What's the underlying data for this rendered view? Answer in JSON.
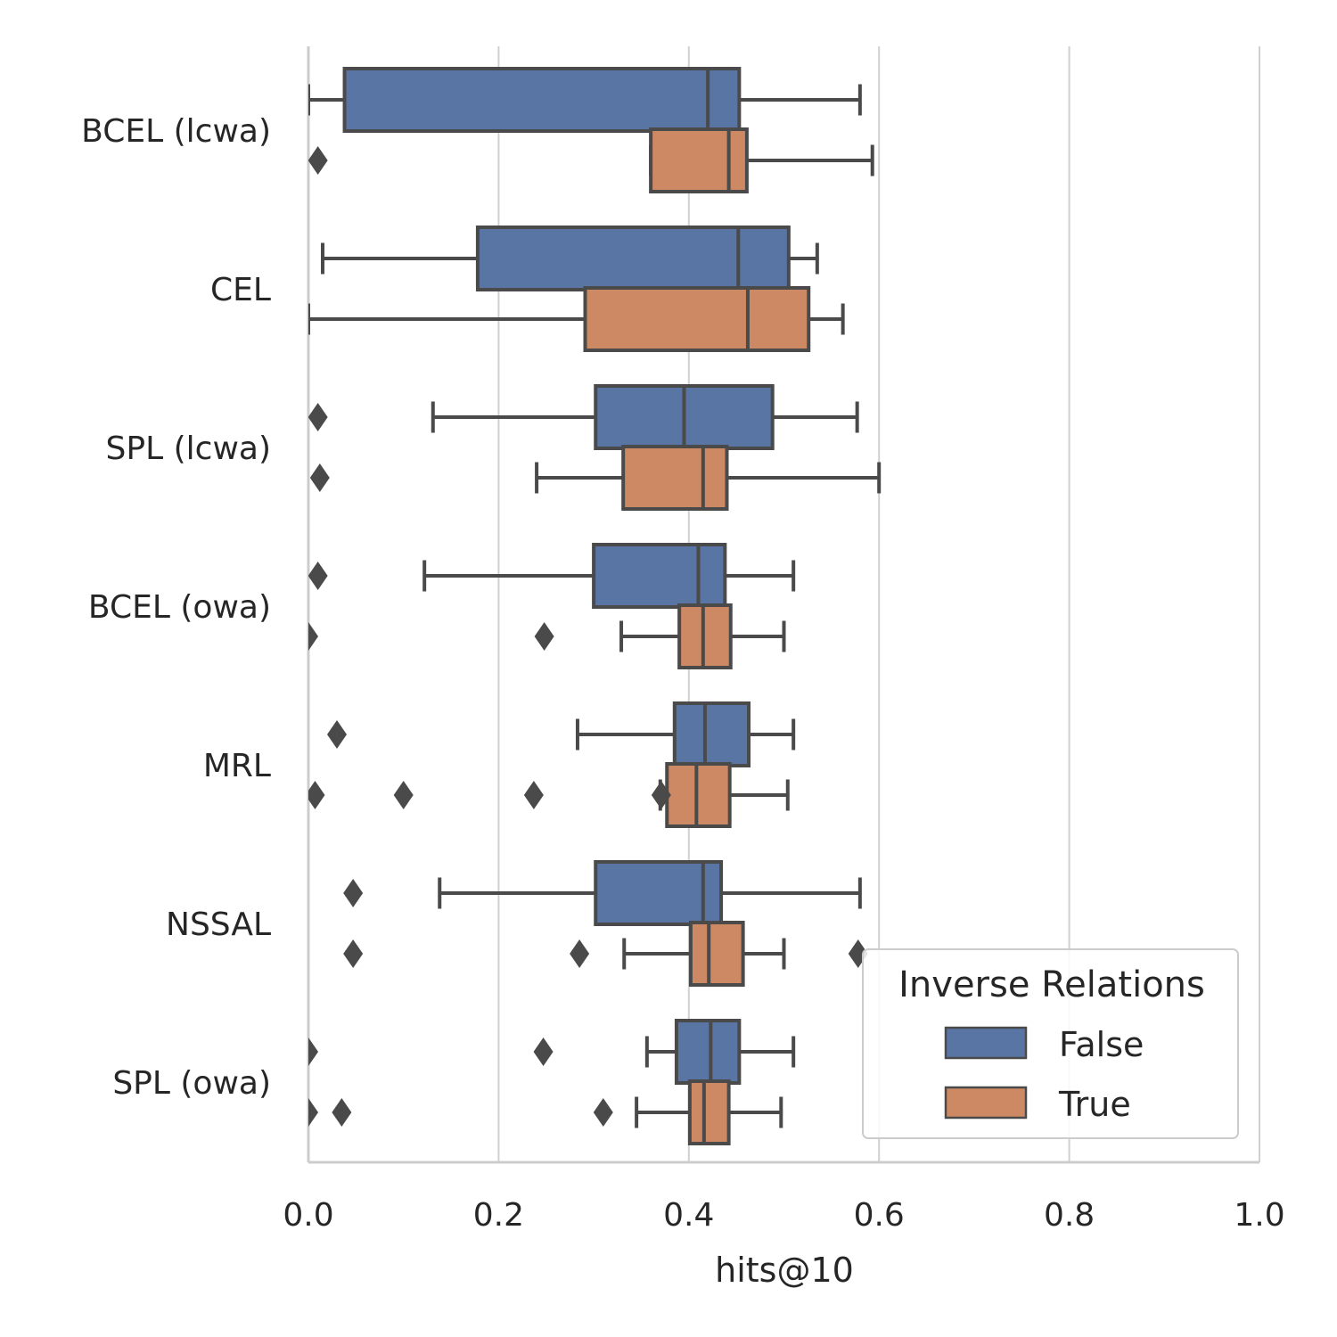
{
  "chart_data": {
    "type": "boxplot",
    "orientation": "horizontal",
    "xlabel": "hits@10",
    "ylabel": "",
    "xlim": [
      0.0,
      1.0
    ],
    "xticks": [
      "0.0",
      "0.2",
      "0.4",
      "0.6",
      "0.8",
      "1.0"
    ],
    "xtick_values": [
      0.0,
      0.2,
      0.4,
      0.6,
      0.8,
      1.0
    ],
    "grid": "vertical",
    "colors": {
      "False": "#5875a4",
      "True": "#cc8963",
      "edge": "#4a4a4a",
      "grid": "#d0d0d0",
      "spine": "#cccccc"
    },
    "legend": {
      "title": "Inverse Relations",
      "position": "bottom-right",
      "entries": [
        "False",
        "True"
      ]
    },
    "categories": [
      "BCEL (lcwa)",
      "CEL",
      "SPL (lcwa)",
      "BCEL (owa)",
      "MRL",
      "NSSAL",
      "SPL (owa)"
    ],
    "series": [
      {
        "name": "False",
        "boxes": [
          {
            "whislo": 0.0,
            "q1": 0.038,
            "med": 0.42,
            "q3": 0.453,
            "whishi": 0.58,
            "fliers": []
          },
          {
            "whislo": 0.015,
            "q1": 0.178,
            "med": 0.452,
            "q3": 0.505,
            "whishi": 0.535,
            "fliers": []
          },
          {
            "whislo": 0.131,
            "q1": 0.302,
            "med": 0.395,
            "q3": 0.488,
            "whishi": 0.577,
            "fliers": [
              0.01
            ]
          },
          {
            "whislo": 0.122,
            "q1": 0.3,
            "med": 0.41,
            "q3": 0.438,
            "whishi": 0.51,
            "fliers": [
              0.01
            ]
          },
          {
            "whislo": 0.283,
            "q1": 0.385,
            "med": 0.417,
            "q3": 0.463,
            "whishi": 0.51,
            "fliers": [
              0.03
            ]
          },
          {
            "whislo": 0.138,
            "q1": 0.302,
            "med": 0.415,
            "q3": 0.434,
            "whishi": 0.58,
            "fliers": [
              0.047
            ]
          },
          {
            "whislo": 0.356,
            "q1": 0.387,
            "med": 0.423,
            "q3": 0.453,
            "whishi": 0.51,
            "fliers": [
              0.0,
              0.247
            ]
          }
        ]
      },
      {
        "name": "True",
        "boxes": [
          {
            "whislo": 0.36,
            "q1": 0.36,
            "med": 0.442,
            "q3": 0.461,
            "whishi": 0.593,
            "fliers": [
              0.01
            ]
          },
          {
            "whislo": 0.0,
            "q1": 0.291,
            "med": 0.462,
            "q3": 0.526,
            "whishi": 0.562,
            "fliers": []
          },
          {
            "whislo": 0.24,
            "q1": 0.331,
            "med": 0.415,
            "q3": 0.44,
            "whishi": 0.6,
            "fliers": [
              0.012
            ]
          },
          {
            "whislo": 0.329,
            "q1": 0.39,
            "med": 0.415,
            "q3": 0.444,
            "whishi": 0.5,
            "fliers": [
              0.0,
              0.248
            ]
          },
          {
            "whislo": 0.37,
            "q1": 0.377,
            "med": 0.408,
            "q3": 0.443,
            "whishi": 0.504,
            "fliers": [
              0.007,
              0.1,
              0.237,
              0.371
            ]
          },
          {
            "whislo": 0.332,
            "q1": 0.402,
            "med": 0.421,
            "q3": 0.457,
            "whishi": 0.5,
            "fliers": [
              0.047,
              0.285,
              0.578
            ]
          },
          {
            "whislo": 0.345,
            "q1": 0.401,
            "med": 0.416,
            "q3": 0.442,
            "whishi": 0.497,
            "fliers": [
              0.0,
              0.035,
              0.31
            ]
          }
        ]
      }
    ]
  }
}
